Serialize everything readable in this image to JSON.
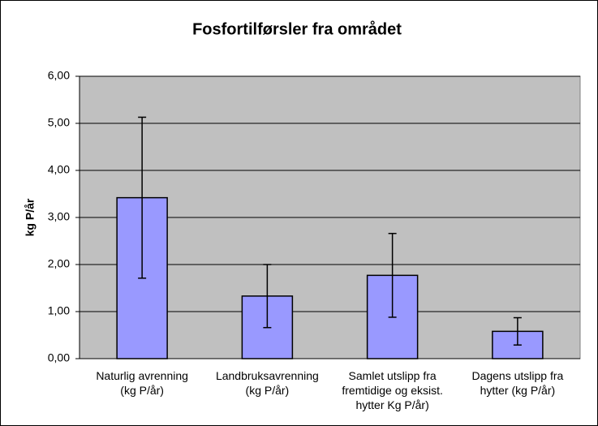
{
  "chart_data": {
    "type": "bar",
    "title": "Fosfortilførsler  fra området",
    "y_label": "kg P/år",
    "categories": [
      "Naturlig avrenning\n(kg P/år)",
      "Landbruksavrenning\n(kg P/år)",
      "Samlet utslipp fra\nfremtidige og eksist.\nhytter Kg P/år)",
      "Dagens utslipp fra\nhytter (kg P/år)"
    ],
    "values": [
      3.42,
      1.33,
      1.77,
      0.58
    ],
    "errors": [
      1.71,
      0.67,
      0.89,
      0.29
    ],
    "color": "#9999ff",
    "plot_background": "#c0c0c0",
    "ylim": [
      0,
      6
    ],
    "yticks": [
      {
        "value": 0,
        "label": "0,00"
      },
      {
        "value": 1,
        "label": "1,00"
      },
      {
        "value": 2,
        "label": "2,00"
      },
      {
        "value": 3,
        "label": "3,00"
      },
      {
        "value": 4,
        "label": "4,00"
      },
      {
        "value": 5,
        "label": "5,00"
      },
      {
        "value": 6,
        "label": "6,00"
      }
    ],
    "grid": true
  }
}
